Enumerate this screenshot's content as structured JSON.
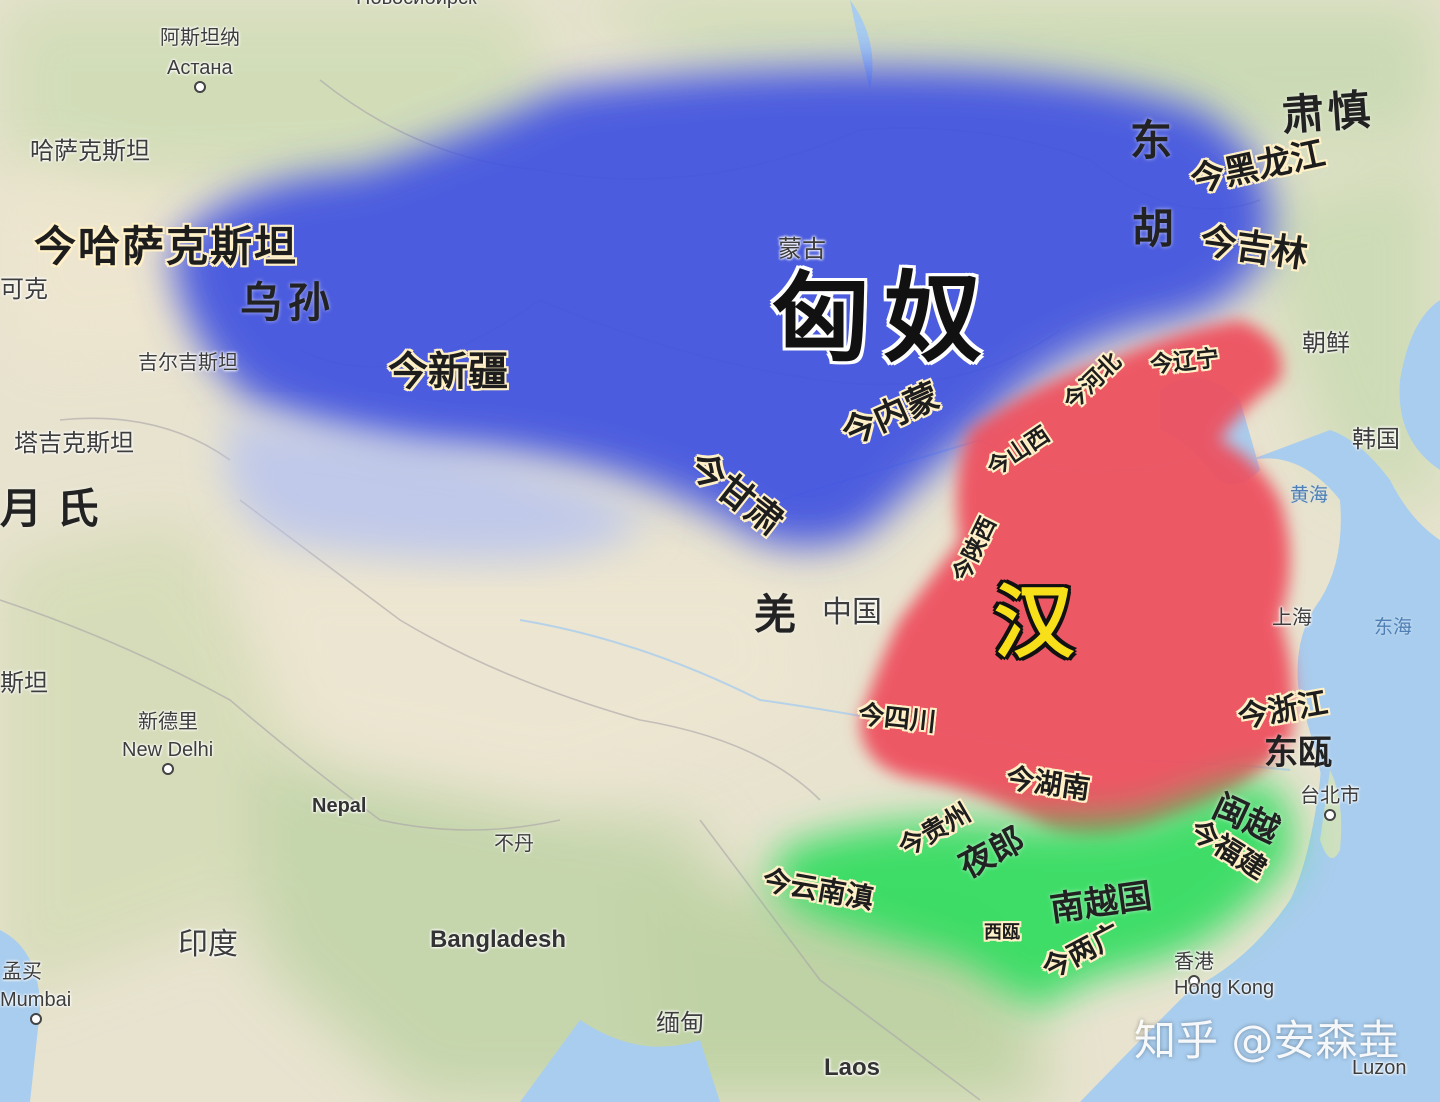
{
  "base_labels": {
    "nur_sultan_cn": "阿斯坦纳",
    "nur_sultan_ru": "Астана",
    "kazakhstan": "哈萨克斯坦",
    "kazakhstan_cut": "可克",
    "kyrgyzstan": "吉尔吉斯坦",
    "tajikistan": "塔吉克斯坦",
    "mongolia": "蒙古",
    "korea_north": "朝鲜",
    "korea_south": "韩国",
    "yellow_sea": "黄海",
    "east_sea": "东海",
    "china": "中国",
    "shanghai": "上海",
    "taipei": "台北市",
    "hongkong_cn": "香港",
    "hongkong_en": "Hong Kong",
    "new_delhi_cn": "新德里",
    "new_delhi_en": "New Delhi",
    "nepal": "Nepal",
    "bhutan": "不丹",
    "bangladesh": "Bangladesh",
    "india": "印度",
    "mumbai_cn": "孟买",
    "mumbai_en": "Mumbai",
    "myanmar": "缅甸",
    "laos": "Laos",
    "luzon": "Luzon",
    "pakistan_cut": "斯坦",
    "novosibirsk": "Новосибирск"
  },
  "polities": {
    "xiongnu": "匈奴",
    "han": "汉",
    "wusun": "乌孙",
    "donghu_1": "东",
    "donghu_2": "胡",
    "sushen": "肃慎",
    "yuezhi": "月 氏",
    "qiang": "羌",
    "dongou": "东瓯",
    "minyue": "闽越",
    "yelang": "夜郎",
    "nanyue": "南越国",
    "xiou": "西瓯"
  },
  "modern_regions": {
    "kazakhstan": "今哈萨克斯坦",
    "xinjiang": "今新疆",
    "heilongjiang": "今黑龙江",
    "jilin": "今吉林",
    "inner_mongolia": "今内蒙",
    "gansu": "今甘肃",
    "hebei": "今河北",
    "liaoning": "今辽宁",
    "shanxi": "今山西",
    "shaanxi": "今陕西",
    "sichuan": "今四川",
    "hunan": "今湖南",
    "guizhou": "今贵州",
    "yunnan": "今云南滇",
    "zhejiang": "今浙江",
    "fujian": "今福建",
    "guangdong_guangxi": "今两广"
  },
  "watermark": "知乎 @安森垚",
  "colors": {
    "xiongnu_area": "#3f52e0",
    "han_area": "#ee4f5e",
    "southern_area": "#2fdc5e",
    "sea": "#a9cdee",
    "land": "#e6e1cd"
  }
}
